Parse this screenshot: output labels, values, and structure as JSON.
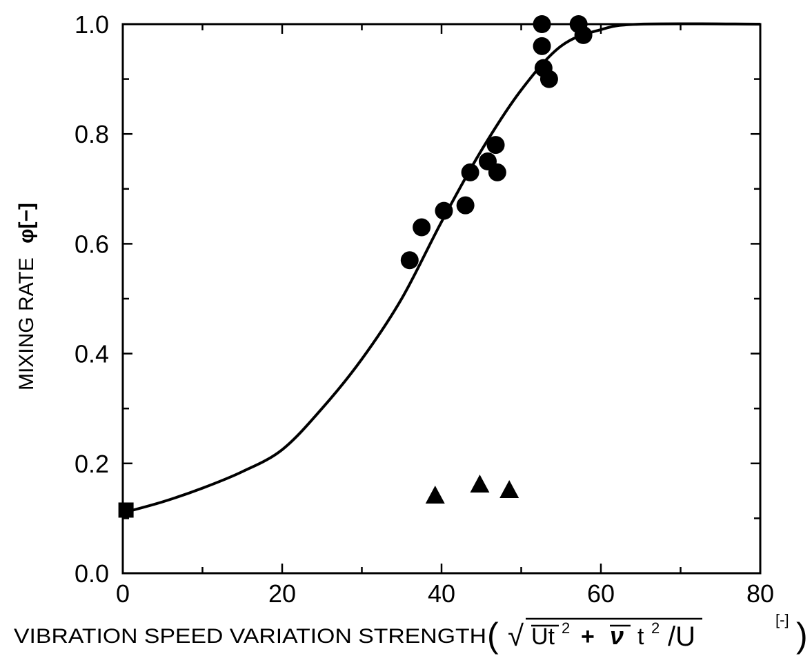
{
  "chart_data": {
    "type": "scatter",
    "title": "",
    "xlabel": "VIBRATION SPEED VARIATION STRENGTH",
    "xlabel_formula": {
      "open_paren": "(",
      "root": "√",
      "term1": "Ut",
      "sq1": "2",
      "plus": "+",
      "term2": "ν",
      "t2": "t",
      "sq2": "2",
      "slash": "/U",
      "unit": "[-]",
      "close_paren": ")"
    },
    "ylabel": "MIXING RATE",
    "ylabel_symbol": "φ[−]",
    "xlim": [
      0,
      80
    ],
    "ylim": [
      0.0,
      1.0
    ],
    "x_ticks": [
      {
        "value": 0,
        "label": "0"
      },
      {
        "value": 20,
        "label": "20"
      },
      {
        "value": 40,
        "label": "40"
      },
      {
        "value": 60,
        "label": "60"
      },
      {
        "value": 80,
        "label": "80"
      }
    ],
    "y_ticks": [
      {
        "value": 0.0,
        "label": "0.0"
      },
      {
        "value": 0.2,
        "label": "0.2"
      },
      {
        "value": 0.4,
        "label": "0.4"
      },
      {
        "value": 0.6,
        "label": "0.6"
      },
      {
        "value": 0.8,
        "label": "0.8"
      },
      {
        "value": 1.0,
        "label": "1.0"
      }
    ],
    "grid": false,
    "legend": "none",
    "series": [
      {
        "marker": "circle",
        "points": [
          {
            "x": 36.0,
            "y": 0.57
          },
          {
            "x": 37.5,
            "y": 0.63
          },
          {
            "x": 40.3,
            "y": 0.66
          },
          {
            "x": 43.0,
            "y": 0.67
          },
          {
            "x": 43.6,
            "y": 0.73
          },
          {
            "x": 45.8,
            "y": 0.75
          },
          {
            "x": 46.8,
            "y": 0.78
          },
          {
            "x": 47.0,
            "y": 0.73
          },
          {
            "x": 52.6,
            "y": 1.0
          },
          {
            "x": 52.6,
            "y": 0.96
          },
          {
            "x": 52.8,
            "y": 0.92
          },
          {
            "x": 53.5,
            "y": 0.9
          },
          {
            "x": 57.2,
            "y": 1.0
          },
          {
            "x": 57.8,
            "y": 0.98
          }
        ]
      },
      {
        "marker": "triangle",
        "points": [
          {
            "x": 39.2,
            "y": 0.14
          },
          {
            "x": 44.8,
            "y": 0.16
          },
          {
            "x": 48.5,
            "y": 0.15
          }
        ]
      },
      {
        "marker": "square",
        "points": [
          {
            "x": 0.4,
            "y": 0.115
          }
        ]
      },
      {
        "marker": "line",
        "points": [
          {
            "x": 0,
            "y": 0.11
          },
          {
            "x": 5,
            "y": 0.13
          },
          {
            "x": 10,
            "y": 0.155
          },
          {
            "x": 15,
            "y": 0.185
          },
          {
            "x": 20,
            "y": 0.225
          },
          {
            "x": 25,
            "y": 0.3
          },
          {
            "x": 30,
            "y": 0.39
          },
          {
            "x": 35,
            "y": 0.5
          },
          {
            "x": 40,
            "y": 0.64
          },
          {
            "x": 45,
            "y": 0.77
          },
          {
            "x": 50,
            "y": 0.88
          },
          {
            "x": 55,
            "y": 0.96
          },
          {
            "x": 60,
            "y": 0.99
          },
          {
            "x": 65,
            "y": 1.0
          },
          {
            "x": 80,
            "y": 1.0
          }
        ]
      }
    ]
  }
}
